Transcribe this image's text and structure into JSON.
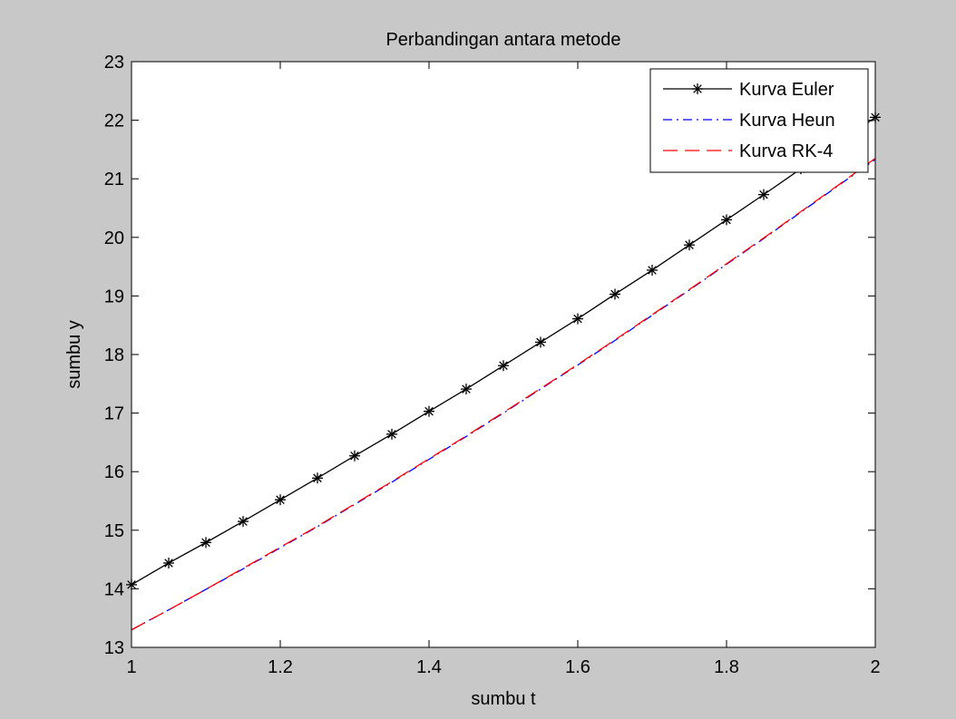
{
  "chart_data": {
    "type": "line",
    "title": "Perbandingan antara metode",
    "xlabel": "sumbu t",
    "ylabel": "sumbu y",
    "xlim": [
      1,
      2
    ],
    "ylim": [
      13,
      23
    ],
    "xticks": [
      1,
      1.2,
      1.4,
      1.6,
      1.8,
      2
    ],
    "xtick_labels": [
      "1",
      "1.2",
      "1.4",
      "1.6",
      "1.8",
      "2"
    ],
    "yticks": [
      13,
      14,
      15,
      16,
      17,
      18,
      19,
      20,
      21,
      22,
      23
    ],
    "ytick_labels": [
      "13",
      "14",
      "15",
      "16",
      "17",
      "18",
      "19",
      "20",
      "21",
      "22",
      "23"
    ],
    "grid": false,
    "legend_position": "top-right",
    "x": [
      1.0,
      1.05,
      1.1,
      1.15,
      1.2,
      1.25,
      1.3,
      1.35,
      1.4,
      1.45,
      1.5,
      1.55,
      1.6,
      1.65,
      1.7,
      1.75,
      1.8,
      1.85,
      1.9,
      1.95,
      2.0
    ],
    "series": [
      {
        "name": "Kurva Euler",
        "color": "#000000",
        "style": "solid-asterisk",
        "values": [
          14.07,
          14.44,
          14.79,
          15.15,
          15.52,
          15.89,
          16.27,
          16.64,
          17.03,
          17.41,
          17.81,
          18.21,
          18.61,
          19.03,
          19.44,
          19.87,
          20.3,
          20.73,
          21.17,
          21.6,
          22.05
        ]
      },
      {
        "name": "Kurva Heun",
        "color": "#0000ff",
        "style": "dash-dot",
        "values": [
          13.3,
          13.64,
          13.99,
          14.34,
          14.7,
          15.06,
          15.44,
          15.82,
          16.21,
          16.6,
          17.0,
          17.41,
          17.82,
          18.24,
          18.67,
          19.1,
          19.54,
          19.98,
          20.43,
          20.88,
          21.33
        ]
      },
      {
        "name": "Kurva RK-4",
        "color": "#ff0000",
        "style": "dashed",
        "values": [
          13.3,
          13.64,
          13.99,
          14.35,
          14.71,
          15.07,
          15.45,
          15.83,
          16.22,
          16.61,
          17.01,
          17.42,
          17.83,
          18.25,
          18.68,
          19.11,
          19.55,
          19.99,
          20.44,
          20.89,
          21.35
        ]
      }
    ]
  }
}
